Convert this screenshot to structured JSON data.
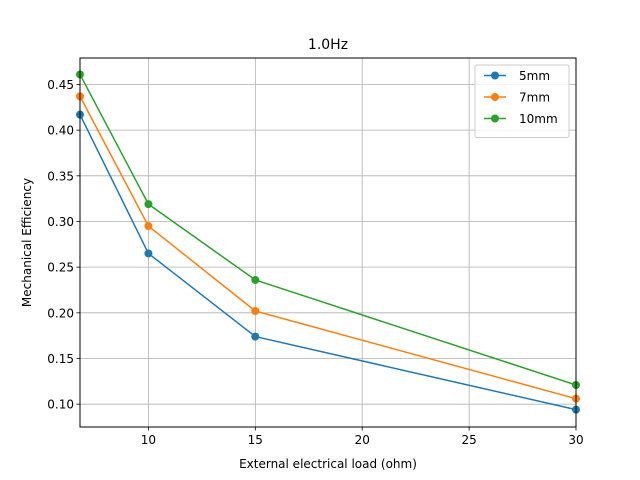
{
  "chart_data": {
    "type": "line",
    "title": "1.0Hz",
    "xlabel": "External electrical load (ohm)",
    "ylabel": "Mechanical Efficiency",
    "x": [
      6.8,
      10,
      15,
      30
    ],
    "xlim": [
      6.8,
      30
    ],
    "ylim": [
      0.075,
      0.479
    ],
    "xticks": [
      10,
      15,
      20,
      25,
      30
    ],
    "yticks": [
      0.1,
      0.15,
      0.2,
      0.25,
      0.3,
      0.35,
      0.4,
      0.45
    ],
    "xtick_labels": [
      "10",
      "15",
      "20",
      "25",
      "30"
    ],
    "ytick_labels": [
      "0.10",
      "0.15",
      "0.20",
      "0.25",
      "0.30",
      "0.35",
      "0.40",
      "0.45"
    ],
    "grid": true,
    "legend_position": "top-right",
    "series": [
      {
        "name": "5mm",
        "color": "#1f77b4",
        "values": [
          0.417,
          0.265,
          0.174,
          0.094
        ]
      },
      {
        "name": "7mm",
        "color": "#ff7f0e",
        "values": [
          0.437,
          0.295,
          0.202,
          0.106
        ]
      },
      {
        "name": "10mm",
        "color": "#2ca02c",
        "values": [
          0.461,
          0.319,
          0.236,
          0.121
        ]
      }
    ]
  }
}
